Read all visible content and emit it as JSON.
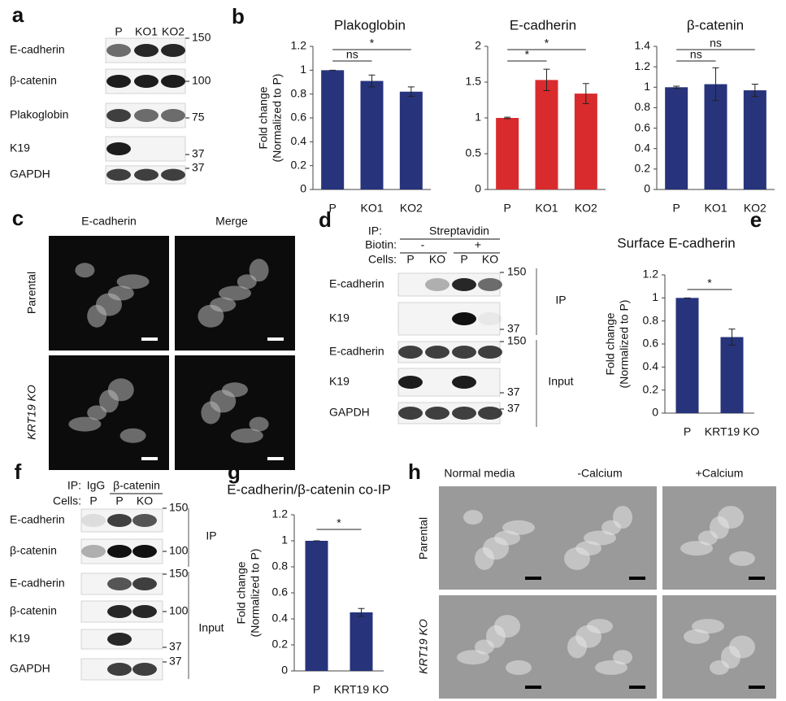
{
  "panel_labels": [
    "a",
    "b",
    "c",
    "d",
    "e",
    "f",
    "g",
    "h"
  ],
  "blot_a": {
    "lanes": [
      "P",
      "KO1",
      "KO2"
    ],
    "rows": [
      "E-cadherin",
      "β-catenin",
      "Plakoglobin",
      "K19",
      "GAPDH"
    ],
    "markers": [
      150,
      100,
      75,
      37,
      37
    ]
  },
  "micrographs_c": {
    "columns": [
      "E-cadherin",
      "Merge"
    ],
    "rows": [
      "Parental",
      "KRT19 KO"
    ]
  },
  "blot_d": {
    "ip_label": "IP:",
    "ip": "Streptavidin",
    "biotin_label": "Biotin:",
    "biotin": [
      "-",
      "+"
    ],
    "cells_label": "Cells:",
    "lanes": [
      "P",
      "KO",
      "P",
      "KO"
    ],
    "rows": [
      "E-cadherin",
      "K19",
      "E-cadherin",
      "K19",
      "GAPDH"
    ],
    "markers": [
      150,
      37,
      150,
      37,
      37
    ],
    "groups": [
      "IP",
      "Input"
    ]
  },
  "blot_f": {
    "ip_label": "IP:",
    "ip": [
      "IgG",
      "β-catenin"
    ],
    "cells_label": "Cells:",
    "lanes": [
      "P",
      "P",
      "KO"
    ],
    "rows": [
      "E-cadherin",
      "β-catenin",
      "E-cadherin",
      "β-catenin",
      "K19",
      "GAPDH"
    ],
    "markers": [
      150,
      100,
      150,
      100,
      37,
      37
    ],
    "groups": [
      "IP",
      "Input"
    ]
  },
  "micrographs_h": {
    "columns": [
      "Normal media",
      "-Calcium",
      "+Calcium"
    ],
    "rows": [
      "Parental",
      "KRT19 KO"
    ]
  },
  "chart_data": [
    {
      "type": "bar",
      "title": "Plakoglobin",
      "ylabel": [
        "Fold change",
        "(Normalized to P)"
      ],
      "categories": [
        "P",
        "KO1",
        "KO2"
      ],
      "values": [
        1,
        0.91,
        0.82
      ],
      "errors": [
        0,
        0.05,
        0.04
      ],
      "color": "#27337a",
      "ylim": [
        0,
        1.2
      ],
      "yticks": [
        0,
        0.2,
        0.4,
        0.6,
        0.8,
        1,
        1.2
      ],
      "significance": [
        "ns",
        "*"
      ]
    },
    {
      "type": "bar",
      "title": "E-cadherin",
      "categories": [
        "P",
        "KO1",
        "KO2"
      ],
      "values": [
        1,
        1.53,
        1.34
      ],
      "errors": [
        0.01,
        0.15,
        0.14
      ],
      "color": "#d92b2e",
      "ylim": [
        0,
        2
      ],
      "yticks": [
        0,
        0.5,
        1,
        1.5,
        2
      ],
      "significance": [
        "*",
        "*"
      ]
    },
    {
      "type": "bar",
      "title": "β-catenin",
      "categories": [
        "P",
        "KO1",
        "KO2"
      ],
      "values": [
        1,
        1.03,
        0.97
      ],
      "errors": [
        0.01,
        0.16,
        0.06
      ],
      "color": "#27337a",
      "ylim": [
        0,
        1.4
      ],
      "yticks": [
        0,
        0.2,
        0.4,
        0.6,
        0.8,
        1,
        1.2,
        1.4
      ],
      "significance": [
        "ns",
        "ns"
      ]
    },
    {
      "type": "bar",
      "title": "Surface E-cadherin",
      "ylabel": [
        "Fold change",
        "(Normalized to P)"
      ],
      "categories": [
        "P",
        "KRT19 KO"
      ],
      "values": [
        1,
        0.66
      ],
      "errors": [
        0,
        0.07
      ],
      "color": "#27337a",
      "ylim": [
        0,
        1.2
      ],
      "yticks": [
        0,
        0.2,
        0.4,
        0.6,
        0.8,
        1,
        1.2
      ],
      "significance": [
        "*"
      ]
    },
    {
      "type": "bar",
      "title": "E-cadherin/β-catenin co-IP",
      "ylabel": [
        "Fold change",
        "(Normalized to P)"
      ],
      "categories": [
        "P",
        "KRT19 KO"
      ],
      "values": [
        1,
        0.45
      ],
      "errors": [
        0,
        0.03
      ],
      "color": "#27337a",
      "ylim": [
        0,
        1.2
      ],
      "yticks": [
        0,
        0.2,
        0.4,
        0.6,
        0.8,
        1,
        1.2
      ],
      "significance": [
        "*"
      ]
    }
  ]
}
